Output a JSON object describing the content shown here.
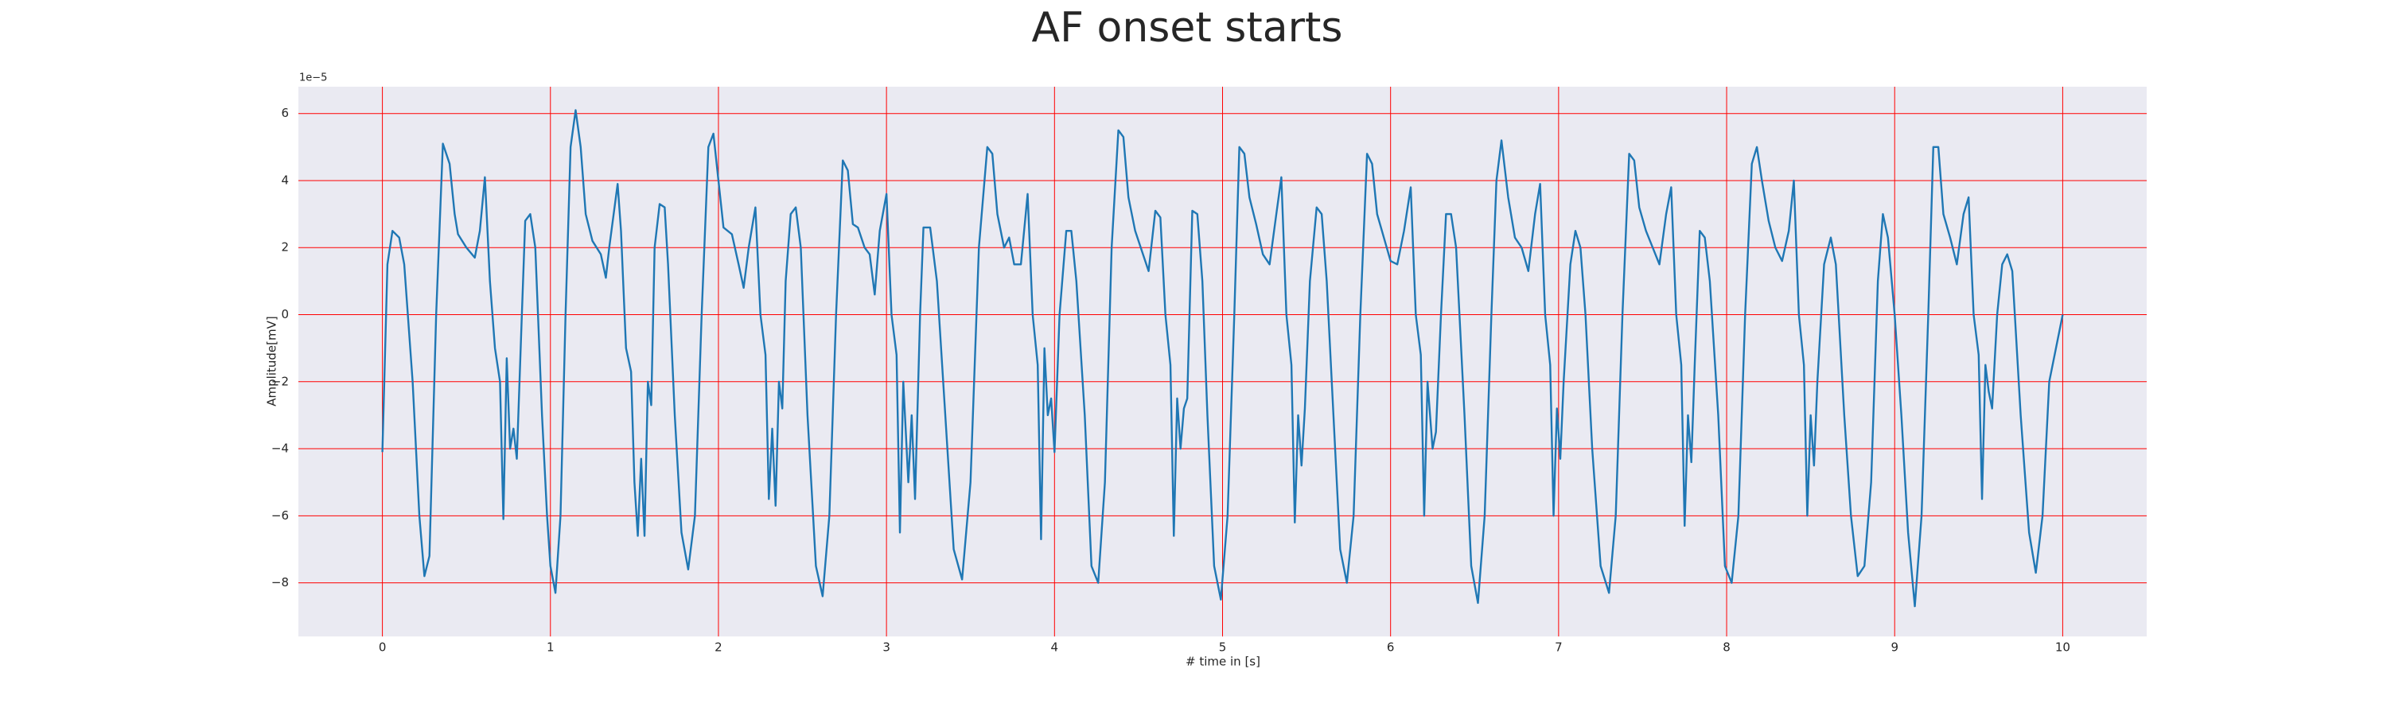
{
  "chart_data": {
    "type": "line",
    "title": "AF onset starts",
    "xlabel": "# time in [s]",
    "ylabel": "Amplitude[mV]",
    "offset_text": "1e−5",
    "color": "#1f77b4",
    "grid": true,
    "grid_color": "#ff0000",
    "background": "#eaeaf2",
    "xlim": [
      -0.5,
      10.5
    ],
    "ylim": [
      -9.6,
      6.8
    ],
    "xticks": [
      0,
      1,
      2,
      3,
      4,
      5,
      6,
      7,
      8,
      9,
      10
    ],
    "yticks": [
      {
        "value": -8,
        "label": "−8"
      },
      {
        "value": -6,
        "label": "−6"
      },
      {
        "value": -4,
        "label": "−4"
      },
      {
        "value": -2,
        "label": "−2"
      },
      0,
      2,
      4,
      6
    ],
    "x": [
      0,
      0.03,
      0.06,
      0.1,
      0.13,
      0.18,
      0.22,
      0.25,
      0.28,
      0.32,
      0.36,
      0.4,
      0.43,
      0.45,
      0.5,
      0.55,
      0.58,
      0.61,
      0.64,
      0.67,
      0.7,
      0.72,
      0.74,
      0.76,
      0.78,
      0.8,
      0.83,
      0.85,
      0.88,
      0.91,
      0.95,
      0.98,
      1.0,
      1.03,
      1.06,
      1.09,
      1.12,
      1.15,
      1.18,
      1.21,
      1.25,
      1.3,
      1.33,
      1.35,
      1.4,
      1.42,
      1.45,
      1.48,
      1.5,
      1.52,
      1.54,
      1.56,
      1.58,
      1.6,
      1.62,
      1.65,
      1.68,
      1.7,
      1.74,
      1.78,
      1.82,
      1.86,
      1.9,
      1.94,
      1.97,
      2.0,
      2.03,
      2.08,
      2.12,
      2.15,
      2.18,
      2.22,
      2.25,
      2.28,
      2.3,
      2.32,
      2.34,
      2.36,
      2.38,
      2.4,
      2.43,
      2.46,
      2.49,
      2.53,
      2.58,
      2.62,
      2.66,
      2.7,
      2.74,
      2.77,
      2.8,
      2.83,
      2.87,
      2.9,
      2.93,
      2.96,
      3.0,
      3.03,
      3.06,
      3.08,
      3.1,
      3.13,
      3.15,
      3.17,
      3.2,
      3.22,
      3.26,
      3.3,
      3.35,
      3.4,
      3.45,
      3.5,
      3.55,
      3.6,
      3.63,
      3.66,
      3.7,
      3.73,
      3.76,
      3.8,
      3.84,
      3.87,
      3.9,
      3.92,
      3.94,
      3.96,
      3.98,
      4.0,
      4.03,
      4.07,
      4.1,
      4.13,
      4.18,
      4.22,
      4.26,
      4.3,
      4.34,
      4.38,
      4.41,
      4.44,
      4.48,
      4.52,
      4.56,
      4.6,
      4.63,
      4.66,
      4.69,
      4.71,
      4.73,
      4.75,
      4.77,
      4.79,
      4.82,
      4.85,
      4.88,
      4.91,
      4.95,
      4.99,
      5.03,
      5.07,
      5.1,
      5.13,
      5.16,
      5.2,
      5.24,
      5.28,
      5.32,
      5.35,
      5.38,
      5.41,
      5.43,
      5.45,
      5.47,
      5.49,
      5.52,
      5.56,
      5.59,
      5.62,
      5.66,
      5.7,
      5.74,
      5.78,
      5.82,
      5.86,
      5.89,
      5.92,
      5.96,
      6.0,
      6.04,
      6.08,
      6.12,
      6.15,
      6.18,
      6.2,
      6.22,
      6.25,
      6.27,
      6.3,
      6.33,
      6.36,
      6.39,
      6.44,
      6.48,
      6.52,
      6.56,
      6.6,
      6.63,
      6.66,
      6.7,
      6.74,
      6.78,
      6.82,
      6.86,
      6.89,
      6.92,
      6.95,
      6.97,
      6.99,
      7.01,
      7.03,
      7.07,
      7.1,
      7.13,
      7.16,
      7.2,
      7.25,
      7.3,
      7.34,
      7.38,
      7.42,
      7.45,
      7.48,
      7.52,
      7.56,
      7.6,
      7.64,
      7.67,
      7.7,
      7.73,
      7.75,
      7.77,
      7.79,
      7.81,
      7.84,
      7.87,
      7.9,
      7.95,
      7.99,
      8.03,
      8.07,
      8.11,
      8.15,
      8.18,
      8.21,
      8.25,
      8.29,
      8.33,
      8.37,
      8.4,
      8.43,
      8.46,
      8.48,
      8.5,
      8.52,
      8.54,
      8.58,
      8.62,
      8.65,
      8.7,
      8.74,
      8.78,
      8.82,
      8.86,
      8.9,
      8.93,
      8.96,
      9.0,
      9.04,
      9.08,
      9.12,
      9.16,
      9.2,
      9.23,
      9.26,
      9.29,
      9.33,
      9.37,
      9.41,
      9.44,
      9.47,
      9.5,
      9.52,
      9.54,
      9.56,
      9.58,
      9.61,
      9.64,
      9.67,
      9.7,
      9.75,
      9.8,
      9.84,
      9.88,
      9.92,
      9.96,
      10.0
    ],
    "values": [
      -4.1,
      1.5,
      2.5,
      2.3,
      1.5,
      -2,
      -6,
      -7.8,
      -7.2,
      0,
      5.1,
      4.5,
      3,
      2.4,
      2.0,
      1.7,
      2.5,
      4.1,
      1,
      -1,
      -2,
      -6.1,
      -1.3,
      -4,
      -3.4,
      -4.3,
      0,
      2.8,
      3,
      2,
      -3,
      -6,
      -7.5,
      -8.3,
      -6,
      0,
      5,
      6.1,
      5,
      3,
      2.2,
      1.8,
      1.1,
      2,
      3.9,
      2.5,
      -1,
      -1.7,
      -5,
      -6.6,
      -4.3,
      -6.6,
      -2,
      -2.7,
      2,
      3.3,
      3.2,
      1.5,
      -3,
      -6.5,
      -7.6,
      -6,
      0,
      5,
      5.4,
      4,
      2.6,
      2.4,
      1.5,
      0.8,
      2,
      3.2,
      0,
      -1.2,
      -5.5,
      -3.4,
      -5.7,
      -2,
      -2.8,
      1,
      3,
      3.2,
      2,
      -3,
      -7.5,
      -8.4,
      -6,
      0,
      4.6,
      4.3,
      2.7,
      2.6,
      2,
      1.8,
      0.6,
      2.5,
      3.6,
      0,
      -1.2,
      -6.5,
      -2,
      -5,
      -3,
      -5.5,
      0,
      2.6,
      2.6,
      1,
      -3,
      -7,
      -7.9,
      -5,
      2,
      5,
      4.8,
      3,
      2,
      2.3,
      1.5,
      1.5,
      3.6,
      0,
      -1.5,
      -6.7,
      -1,
      -3,
      -2.5,
      -4.1,
      0,
      2.5,
      2.5,
      1,
      -3,
      -7.5,
      -8,
      -5,
      2,
      5.5,
      5.3,
      3.5,
      2.5,
      1.9,
      1.3,
      3.1,
      2.9,
      0,
      -1.5,
      -6.6,
      -2.5,
      -4,
      -2.8,
      -2.5,
      3.1,
      3,
      1,
      -3,
      -7.5,
      -8.5,
      -6,
      0,
      5,
      4.8,
      3.5,
      2.7,
      1.8,
      1.5,
      3,
      4.1,
      0,
      -1.5,
      -6.2,
      -3,
      -4.5,
      -2.8,
      1,
      3.2,
      3,
      1,
      -3,
      -7,
      -8,
      -6,
      0,
      4.8,
      4.5,
      3,
      2.3,
      1.6,
      1.5,
      2.5,
      3.8,
      0,
      -1.2,
      -6,
      -2,
      -4,
      -3.5,
      0,
      3,
      3,
      2,
      -3,
      -7.5,
      -8.6,
      -6,
      0,
      4,
      5.2,
      3.5,
      2.3,
      2.0,
      1.3,
      3,
      3.9,
      0,
      -1.5,
      -6,
      -2.8,
      -4.3,
      -2,
      1.5,
      2.5,
      2,
      0,
      -4,
      -7.5,
      -8.3,
      -6,
      0,
      4.8,
      4.6,
      3.2,
      2.5,
      2,
      1.5,
      3,
      3.8,
      0,
      -1.5,
      -6.3,
      -3,
      -4.4,
      -1.5,
      2.5,
      2.3,
      1,
      -3,
      -7.5,
      -8,
      -6,
      0,
      4.5,
      5,
      4,
      2.8,
      2,
      1.6,
      2.5,
      4,
      0,
      -1.5,
      -6,
      -3,
      -4.5,
      -2,
      1.5,
      2.3,
      1.5,
      -3,
      -6,
      -7.8,
      -7.5,
      -5,
      1,
      3,
      2.3,
      0,
      -3,
      -6.5,
      -8.7,
      -6,
      0,
      5,
      5,
      3,
      2.3,
      1.5,
      3,
      3.5,
      0,
      -1.2,
      -5.5,
      -1.5,
      -2.3,
      -2.8,
      0,
      1.5,
      1.8,
      1.3,
      -3,
      -6.5,
      -7.7,
      -6,
      -2,
      -1,
      0
    ]
  }
}
